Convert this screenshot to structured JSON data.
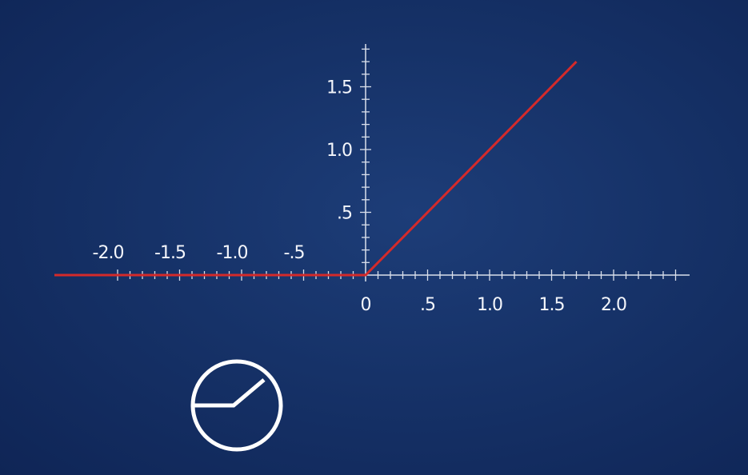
{
  "chart_data": {
    "type": "line",
    "title": "",
    "xlabel": "",
    "ylabel": "",
    "x_ticks": [
      -2.0,
      -1.5,
      -1.0,
      -0.5,
      0,
      0.5,
      1.0,
      1.5,
      2.0
    ],
    "x_tick_labels": [
      "-2.0",
      "-1.5",
      "-1.0",
      "-.5",
      "0",
      ".5",
      "1.0",
      "1.5",
      "2.0"
    ],
    "y_ticks": [
      0.5,
      1.0,
      1.5
    ],
    "y_tick_labels": [
      ".5",
      "1.0",
      "1.5"
    ],
    "xlim": [
      -2.5,
      2.6
    ],
    "ylim": [
      0,
      1.8
    ],
    "minor_tick_step": 0.1,
    "grid": false,
    "series": [
      {
        "x": [
          -2.5,
          0,
          1.7
        ],
        "y": [
          0,
          0,
          1.7
        ],
        "color": "#d42a2a"
      }
    ]
  },
  "icon": {
    "name": "relu-function-icon",
    "color": "#ffffff"
  },
  "colors": {
    "background": "#163268",
    "axis": "#d9dfeb",
    "text": "#f4f6fb"
  }
}
